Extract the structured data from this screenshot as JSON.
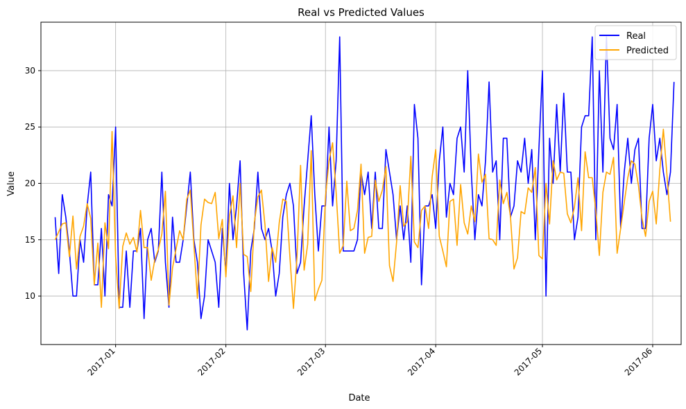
{
  "chart_data": {
    "type": "line",
    "title": "Real vs Predicted Values",
    "xlabel": "Date",
    "ylabel": "Value",
    "x_start": "2016-12-15",
    "x_step_days": 1,
    "xlim": [
      "2016-12-11",
      "2017-06-09"
    ],
    "ylim": [
      5.7,
      34.3
    ],
    "yticks": [
      10,
      15,
      20,
      25,
      30
    ],
    "xticks": [
      {
        "date": "2017-01-01",
        "label": "2017-01"
      },
      {
        "date": "2017-02-01",
        "label": "2017-02"
      },
      {
        "date": "2017-03-01",
        "label": "2017-03"
      },
      {
        "date": "2017-04-01",
        "label": "2017-04"
      },
      {
        "date": "2017-05-01",
        "label": "2017-05"
      },
      {
        "date": "2017-06-01",
        "label": "2017-06"
      }
    ],
    "grid": true,
    "legend_position": "top-right",
    "series": [
      {
        "name": "Real",
        "color": "#0000ff",
        "values": [
          17,
          12,
          19,
          17,
          14,
          10,
          10,
          15,
          13,
          18,
          21,
          11,
          11,
          16,
          10,
          19,
          18,
          25,
          9,
          9,
          14,
          9,
          14,
          14,
          16,
          8,
          15,
          16,
          13,
          14,
          21,
          13,
          9,
          17,
          13,
          13,
          15,
          18,
          21,
          15,
          13,
          8,
          10,
          15,
          14,
          13,
          9,
          16,
          12,
          20,
          15,
          18,
          22,
          12,
          7,
          14,
          16,
          21,
          16,
          15,
          16,
          14,
          10,
          12,
          17,
          19,
          20,
          18,
          12,
          13,
          18,
          22,
          26,
          19,
          14,
          18,
          18,
          25,
          18,
          22,
          33,
          14,
          14,
          14,
          14,
          15,
          21,
          19,
          21,
          16,
          21,
          16,
          16,
          23,
          21,
          19,
          15,
          18,
          15,
          18,
          13,
          27,
          24,
          11,
          18,
          18,
          19,
          16,
          22,
          25,
          17,
          20,
          19,
          24,
          25,
          21,
          30,
          21,
          15,
          19,
          18,
          22,
          29,
          21,
          22,
          15,
          24,
          24,
          17,
          18,
          22,
          21,
          24,
          20,
          23,
          15,
          23,
          30,
          10,
          24,
          20,
          27,
          21,
          28,
          21,
          21,
          15,
          17,
          25,
          26,
          26,
          33,
          15,
          30,
          21,
          33,
          24,
          23,
          27,
          16,
          21,
          24,
          20,
          23,
          24,
          16,
          16,
          24,
          27,
          22,
          24,
          21,
          19,
          21,
          29
        ],
        "_note": "real values"
      },
      {
        "name": "Predicted",
        "color": "#ffa500",
        "values": [
          15.0,
          15.7,
          16.4,
          16.5,
          13.5,
          17.1,
          12.4,
          15.3,
          16.2,
          18.2,
          16.9,
          11.0,
          14.7,
          9.0,
          16.5,
          14.2,
          24.6,
          13.5,
          8.9,
          14.4,
          15.6,
          14.6,
          15.2,
          13.9,
          17.6,
          14.3,
          14.3,
          11.4,
          13.2,
          14.1,
          15.5,
          19.3,
          9.2,
          12.5,
          14.2,
          15.8,
          15.0,
          18.6,
          19.4,
          14.6,
          9.8,
          16.3,
          18.6,
          18.3,
          18.2,
          19.2,
          15.1,
          16.8,
          11.7,
          17.1,
          18.9,
          14.3,
          20.0,
          13.7,
          13.5,
          10.4,
          16.5,
          18.8,
          19.4,
          16.3,
          11.3,
          14.3,
          13.0,
          16.5,
          18.6,
          18.4,
          13.5,
          8.9,
          13.5,
          21.6,
          12.3,
          14.6,
          22.9,
          9.6,
          10.6,
          11.4,
          18.8,
          22.0,
          23.6,
          19.2,
          13.8,
          14.5,
          20.2,
          15.8,
          16.0,
          17.6,
          21.7,
          13.8,
          15.2,
          15.3,
          20.3,
          18.4,
          19.4,
          21.5,
          12.7,
          11.3,
          14.8,
          19.8,
          16.2,
          16.6,
          22.4,
          14.8,
          14.3,
          17.6,
          18.0,
          16.0,
          20.6,
          23.0,
          15.3,
          14.0,
          12.6,
          18.4,
          18.6,
          14.5,
          19.9,
          16.5,
          15.5,
          18.0,
          16.6,
          22.6,
          20.1,
          20.8,
          15.1,
          15.0,
          14.5,
          20.3,
          18.2,
          19.2,
          17.1,
          12.4,
          13.4,
          17.5,
          17.3,
          19.6,
          19.2,
          21.4,
          13.6,
          13.3,
          20.0,
          16.4,
          22.0,
          20.3,
          21.0,
          20.9,
          17.3,
          16.5,
          17.9,
          20.5,
          15.8,
          22.8,
          20.5,
          20.5,
          17.6,
          13.6,
          19.2,
          21.0,
          20.8,
          22.3,
          13.8,
          16.0,
          18.3,
          20.5,
          22.0,
          21.7,
          19.8,
          16.9,
          15.3,
          18.4,
          19.3,
          16.4,
          21.2,
          24.8,
          20.8,
          16.6
        ]
      }
    ]
  }
}
